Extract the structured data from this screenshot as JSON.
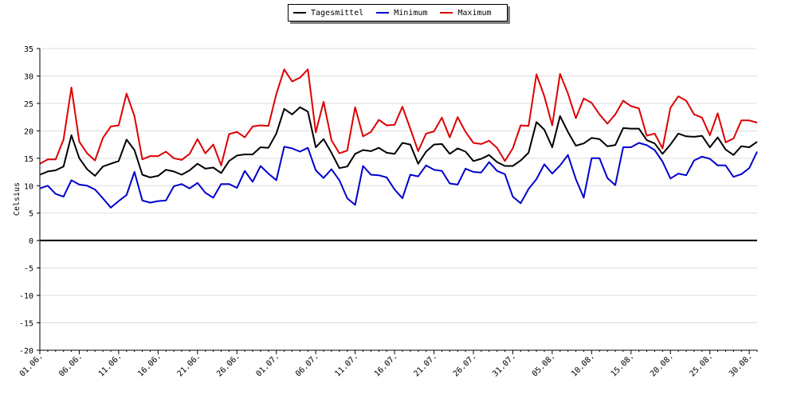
{
  "chart_data": {
    "type": "line",
    "title": "",
    "ylabel": "Celsius",
    "xlabel": "",
    "ylim": [
      -20,
      35
    ],
    "y_ticks": [
      -20,
      -15,
      -10,
      -5,
      0,
      5,
      10,
      15,
      20,
      25,
      30,
      35
    ],
    "grid": "horizontal",
    "legend": "top-center",
    "x_tick_labels": [
      "01.06.",
      "06.06.",
      "11.06.",
      "16.06.",
      "21.06.",
      "26.06.",
      "01.07.",
      "06.07.",
      "11.07.",
      "16.07.",
      "21.07.",
      "26.07.",
      "31.07.",
      "05.08.",
      "10.08.",
      "15.08.",
      "20.08.",
      "25.08.",
      "30.08."
    ],
    "x_tick_every": 5,
    "series": [
      {
        "name": "Tagesmittel",
        "color": "#000000",
        "values": [
          12.0,
          12.6,
          12.8,
          13.5,
          19.2,
          15.0,
          13.0,
          11.8,
          13.5,
          14.0,
          14.5,
          18.4,
          16.5,
          12.0,
          11.5,
          11.8,
          12.9,
          12.6,
          12.0,
          12.8,
          14.0,
          13.1,
          13.3,
          12.3,
          14.5,
          15.5,
          15.7,
          15.7,
          17.0,
          16.9,
          19.5,
          24.0,
          23.0,
          24.3,
          23.5,
          17.0,
          18.5,
          16.0,
          13.2,
          13.5,
          15.8,
          16.5,
          16.3,
          16.9,
          16.0,
          15.8,
          17.8,
          17.5,
          14.0,
          16.2,
          17.5,
          17.6,
          15.8,
          16.8,
          16.2,
          14.5,
          14.9,
          15.6,
          14.3,
          13.6,
          13.6,
          14.6,
          16.0,
          21.6,
          20.2,
          17.0,
          22.7,
          19.8,
          17.3,
          17.7,
          18.7,
          18.5,
          17.2,
          17.4,
          20.5,
          20.4,
          20.4,
          18.3,
          17.7,
          15.8,
          17.5,
          19.5,
          19.0,
          18.9,
          19.1,
          17.0,
          18.8,
          16.6,
          15.6,
          17.2,
          17.0,
          18.0
        ]
      },
      {
        "name": "Minimum",
        "color": "#0000cc",
        "values": [
          9.5,
          10.0,
          8.5,
          8.0,
          11.0,
          10.2,
          10.0,
          9.3,
          7.7,
          6.0,
          7.2,
          8.3,
          12.5,
          7.3,
          6.9,
          7.2,
          7.3,
          9.9,
          10.3,
          9.5,
          10.5,
          8.7,
          7.8,
          10.3,
          10.3,
          9.6,
          12.7,
          10.7,
          13.6,
          12.2,
          11.0,
          17.1,
          16.8,
          16.2,
          16.9,
          12.8,
          11.4,
          13.0,
          11.0,
          7.7,
          6.5,
          13.6,
          12.0,
          11.9,
          11.5,
          9.3,
          7.7,
          12.0,
          11.7,
          13.7,
          12.9,
          12.7,
          10.4,
          10.2,
          13.1,
          12.5,
          12.4,
          14.3,
          12.7,
          12.1,
          8.0,
          6.8,
          9.4,
          11.2,
          13.9,
          12.2,
          13.7,
          15.6,
          11.2,
          7.8,
          15.0,
          15.0,
          11.4,
          10.1,
          17.0,
          17.0,
          17.8,
          17.4,
          16.5,
          14.4,
          11.3,
          12.2,
          11.9,
          14.6,
          15.3,
          14.9,
          13.7,
          13.7,
          11.6,
          12.1,
          13.2,
          16.2
        ]
      },
      {
        "name": "Maximum",
        "color": "#dd0000",
        "values": [
          14.0,
          14.8,
          14.8,
          18.4,
          27.9,
          18.0,
          15.9,
          14.6,
          18.7,
          20.8,
          21.0,
          26.8,
          22.7,
          14.8,
          15.4,
          15.4,
          16.2,
          15.0,
          14.7,
          15.8,
          18.5,
          15.9,
          17.5,
          13.7,
          19.4,
          19.8,
          18.8,
          20.8,
          21.0,
          20.9,
          26.7,
          31.2,
          29.0,
          29.7,
          31.2,
          19.7,
          25.3,
          18.3,
          15.9,
          16.4,
          24.3,
          19.0,
          19.8,
          22.0,
          21.0,
          21.1,
          24.4,
          20.4,
          16.3,
          19.5,
          19.9,
          22.4,
          18.8,
          22.5,
          19.8,
          17.8,
          17.6,
          18.2,
          16.9,
          14.5,
          16.8,
          21.0,
          20.9,
          30.3,
          26.3,
          21.0,
          30.4,
          26.8,
          22.3,
          25.9,
          25.1,
          23.0,
          21.3,
          23.0,
          25.5,
          24.5,
          24.1,
          19.1,
          19.5,
          16.8,
          24.2,
          26.3,
          25.5,
          23.0,
          22.4,
          19.2,
          23.2,
          17.9,
          18.6,
          21.9,
          21.9,
          21.5
        ]
      }
    ]
  }
}
